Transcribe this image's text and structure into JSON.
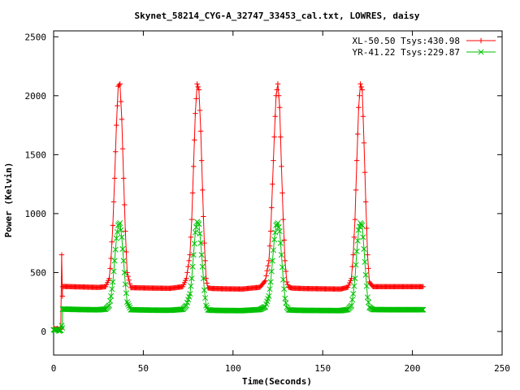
{
  "chart_data": {
    "type": "line",
    "title": "Skynet_58214_CYG-A_32747_33453_cal.txt, LOWRES, daisy",
    "xlabel": "Time(Seconds)",
    "ylabel": "Power (Kelvin)",
    "xlim": [
      0,
      250
    ],
    "ylim": [
      -200,
      2550
    ],
    "xticks": [
      0,
      50,
      100,
      150,
      200,
      250
    ],
    "yticks": [
      0,
      500,
      1000,
      1500,
      2000,
      2500
    ],
    "grid": false,
    "legend_position": "top-right",
    "series": [
      {
        "name": "XL-50.50 Tsys:430.98",
        "color": "#ff0000",
        "marker": "plus",
        "x": [
          0,
          1,
          2,
          3,
          4,
          4.5,
          4.9,
          5,
          5.5,
          10,
          15,
          20,
          25,
          29,
          31,
          32,
          33,
          34,
          35,
          36,
          37,
          38,
          39,
          40,
          41,
          43,
          48,
          55,
          65,
          72,
          74,
          76,
          77,
          78,
          79,
          80,
          81,
          82,
          83,
          84,
          85,
          86,
          88,
          95,
          105,
          115,
          118,
          120,
          121,
          122,
          123,
          124,
          125,
          126,
          127,
          128,
          129,
          130,
          131,
          133,
          140,
          150,
          160,
          164,
          166,
          167,
          168,
          169,
          170,
          171,
          172,
          173,
          174,
          175,
          176,
          178,
          185,
          195,
          206
        ],
        "y": [
          30,
          20,
          25,
          15,
          20,
          650,
          300,
          380,
          382,
          380,
          378,
          376,
          374,
          380,
          450,
          620,
          900,
          1300,
          1750,
          2080,
          2100,
          1800,
          1300,
          850,
          500,
          372,
          370,
          368,
          366,
          380,
          450,
          650,
          950,
          1400,
          1850,
          2100,
          2050,
          1700,
          1200,
          750,
          450,
          370,
          365,
          362,
          360,
          375,
          430,
          600,
          850,
          1250,
          1650,
          2000,
          2100,
          1900,
          1400,
          950,
          600,
          420,
          375,
          368,
          364,
          362,
          360,
          375,
          450,
          650,
          950,
          1450,
          1900,
          2100,
          2050,
          1600,
          1100,
          650,
          420,
          380,
          380,
          380,
          380
        ]
      },
      {
        "name": "YR-41.22 Tsys:229.87",
        "color": "#00c000",
        "marker": "cross",
        "x": [
          0,
          1,
          2,
          3,
          4,
          4.5,
          4.9,
          5,
          5.5,
          10,
          15,
          20,
          25,
          29,
          31,
          32,
          33,
          34,
          35,
          36,
          37,
          38,
          39,
          40,
          41,
          43,
          48,
          55,
          65,
          72,
          74,
          76,
          77,
          78,
          79,
          80,
          81,
          82,
          83,
          84,
          85,
          86,
          88,
          95,
          105,
          115,
          118,
          120,
          121,
          122,
          123,
          124,
          125,
          126,
          127,
          128,
          129,
          130,
          131,
          133,
          140,
          150,
          160,
          164,
          166,
          167,
          168,
          169,
          170,
          171,
          172,
          173,
          174,
          175,
          176,
          178,
          185,
          195,
          206
        ],
        "y": [
          15,
          10,
          20,
          5,
          10,
          50,
          30,
          188,
          190,
          188,
          186,
          185,
          184,
          190,
          220,
          300,
          420,
          600,
          790,
          900,
          920,
          800,
          600,
          400,
          250,
          185,
          183,
          181,
          180,
          188,
          220,
          320,
          450,
          650,
          840,
          930,
          910,
          750,
          550,
          350,
          220,
          184,
          180,
          178,
          177,
          186,
          210,
          300,
          420,
          600,
          780,
          900,
          920,
          850,
          650,
          440,
          280,
          205,
          184,
          181,
          179,
          178,
          177,
          186,
          220,
          320,
          450,
          680,
          860,
          920,
          900,
          700,
          480,
          290,
          205,
          186,
          185,
          185,
          185
        ]
      }
    ]
  }
}
